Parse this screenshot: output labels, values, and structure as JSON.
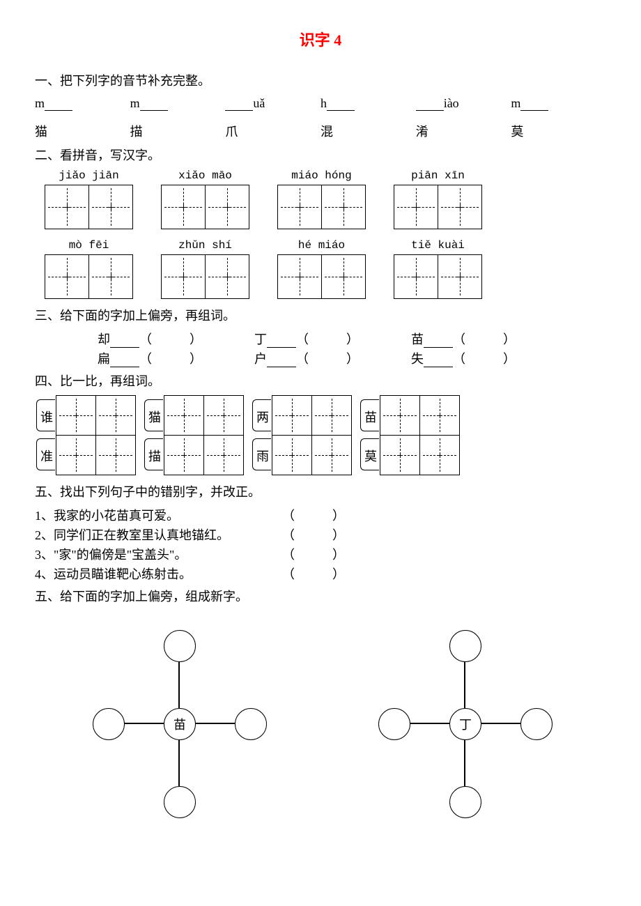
{
  "title": {
    "text": "识字 4",
    "color": "#ff0000"
  },
  "q1": {
    "heading": "一、把下列字的音节补充完整。",
    "items": [
      {
        "pinyin_prefix": "m",
        "pinyin_suffix": "",
        "char": "猫"
      },
      {
        "pinyin_prefix": "m",
        "pinyin_suffix": "",
        "char": "描"
      },
      {
        "pinyin_prefix": "",
        "pinyin_suffix": "uǎ",
        "char": "爪"
      },
      {
        "pinyin_prefix": "h",
        "pinyin_suffix": "",
        "char": "混"
      },
      {
        "pinyin_prefix": "",
        "pinyin_suffix": "iào",
        "char": "淆"
      },
      {
        "pinyin_prefix": "m",
        "pinyin_suffix": "",
        "char": "莫"
      }
    ]
  },
  "q2": {
    "heading": "二、看拼音，写汉字。",
    "rows": [
      [
        {
          "pinyin": "jiǎo jiān"
        },
        {
          "pinyin": "xiǎo māo"
        },
        {
          "pinyin": "miáo hóng"
        },
        {
          "pinyin": "piān xīn"
        }
      ],
      [
        {
          "pinyin": "mò fēi"
        },
        {
          "pinyin": "zhǔn shí"
        },
        {
          "pinyin": "hé miáo"
        },
        {
          "pinyin": "tiě kuài"
        }
      ]
    ],
    "box_size": 62
  },
  "q3": {
    "heading": "三、给下面的字加上偏旁，再组词。",
    "rows": [
      [
        "却",
        "丁",
        "苗"
      ],
      [
        "扁",
        "户",
        "失"
      ]
    ]
  },
  "q4": {
    "heading": "四、比一比，再组词。",
    "groups": [
      {
        "top": "谁",
        "bottom": "准"
      },
      {
        "top": "猫",
        "bottom": "描"
      },
      {
        "top": "两",
        "bottom": "雨"
      },
      {
        "top": "苗",
        "bottom": "莫"
      }
    ],
    "box_size": 56
  },
  "q5a": {
    "heading": "五、找出下列句子中的错别字，并改正。",
    "items": [
      "1、我家的小花苗真可爱。",
      "2、同学们正在教室里认真地锚红。",
      "3、\"家\"的偏傍是\"宝盖头\"。",
      "4、运动员瞄谁靶心练射击。"
    ]
  },
  "q5b": {
    "heading": "五、给下面的字加上偏旁，组成新字。",
    "centers": [
      "苗",
      "丁"
    ]
  },
  "colors": {
    "text": "#000000",
    "background": "#ffffff"
  }
}
